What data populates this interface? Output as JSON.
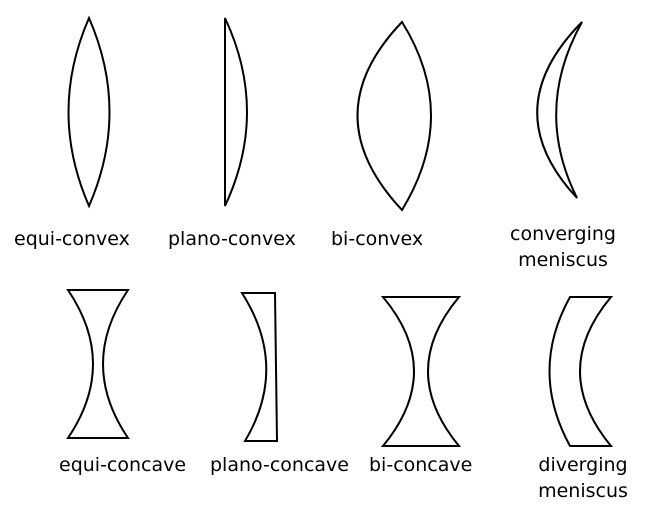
{
  "lenses": {
    "equi_convex": "equi-convex",
    "plano_convex": "plano-convex",
    "bi_convex": "bi-convex",
    "converging_meniscus_line1": "converging",
    "converging_meniscus_line2": "meniscus",
    "equi_concave": "equi-concave",
    "plano_concave": "plano-concave",
    "bi_concave": "bi-concave",
    "diverging_meniscus_line1": "diverging",
    "diverging_meniscus_line2": "meniscus"
  },
  "colors": {
    "stroke": "#000000",
    "fill": "#ffffff",
    "background": "#ffffff"
  }
}
